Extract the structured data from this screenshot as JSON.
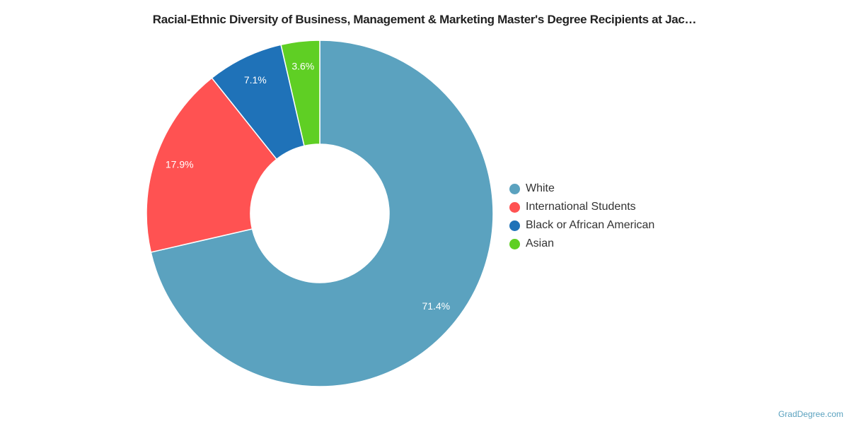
{
  "chart_data": {
    "type": "pie",
    "variant": "donut",
    "title": "Racial-Ethnic Diversity of Business, Management & Marketing Master's Degree Recipients at Jac…",
    "slices": [
      {
        "label": "White",
        "value": 71.4,
        "display": "71.4%",
        "color": "#5ba2bf"
      },
      {
        "label": "International Students",
        "value": 17.9,
        "display": "17.9%",
        "color": "#ff5252"
      },
      {
        "label": "Black or African American",
        "value": 7.1,
        "display": "7.1%",
        "color": "#1f72b8"
      },
      {
        "label": "Asian",
        "value": 3.6,
        "display": "3.6%",
        "color": "#5fcf24"
      }
    ],
    "legend_position": "right"
  },
  "credit": "GradDegree.com"
}
